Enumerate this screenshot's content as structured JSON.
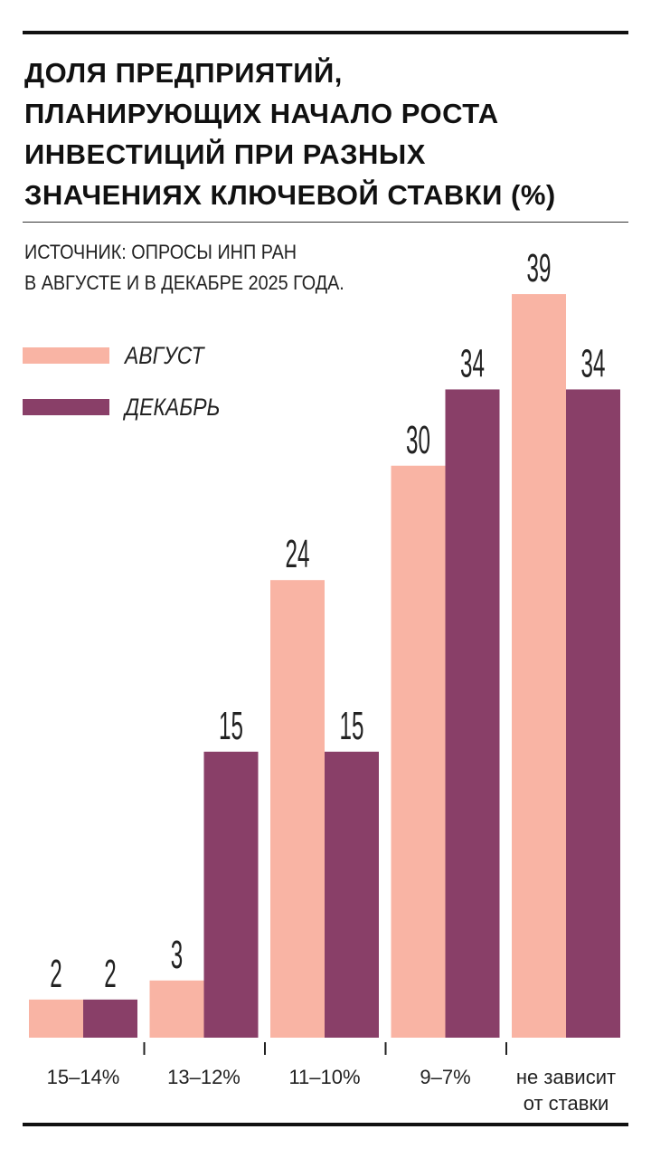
{
  "chart_data": {
    "type": "bar",
    "title": "ДОЛЯ ПРЕДПРИЯТИЙ,\nПЛАНИРУЮЩИХ НАЧАЛО РОСТА\nИНВЕСТИЦИЙ ПРИ РАЗНЫХ\nЗНАЧЕНИЯХ КЛЮЧЕВОЙ СТАВКИ (%)",
    "subtitle": "ИСТОЧНИК: ОПРОСЫ ИНП РАН\nВ АВГУСТЕ И В ДЕКАБРЕ 2025 ГОДА.",
    "categories": [
      "15–14%",
      "13–12%",
      "11–10%",
      "9–7%",
      "не зависит\nот ставки"
    ],
    "series": [
      {
        "name": "АВГУСТ",
        "color": "#f9b4a4",
        "values": [
          2,
          3,
          24,
          30,
          39
        ]
      },
      {
        "name": "ДЕКАБРЬ",
        "color": "#893f68",
        "values": [
          2,
          15,
          15,
          34,
          34
        ]
      }
    ],
    "ylim": [
      0,
      40
    ]
  }
}
